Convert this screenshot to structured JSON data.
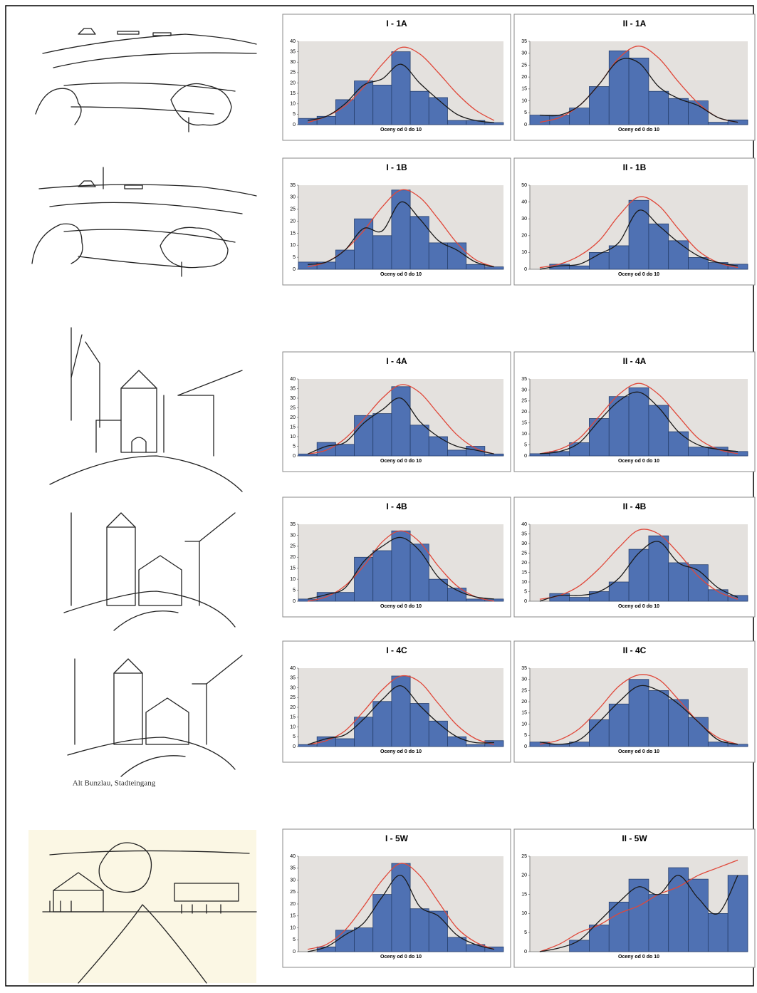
{
  "caption": "Alt Bunzlau, Stadteingang",
  "chart_data": [
    {
      "type": "bar",
      "title": "I - 1A",
      "xlabel": "Oceny od 0 do 10",
      "ylim": [
        0,
        40
      ],
      "yticks": [
        0,
        5,
        10,
        15,
        20,
        25,
        30,
        35,
        40
      ],
      "series": [
        {
          "type": "bar",
          "color": "#4f71b3",
          "values": [
            3,
            4,
            12,
            21,
            19,
            35,
            16,
            13,
            2,
            2,
            1
          ]
        },
        {
          "type": "line",
          "color": "#e0483a",
          "values": [
            1,
            4,
            9,
            18,
            29,
            37,
            34,
            25,
            15,
            7,
            2
          ]
        },
        {
          "type": "line",
          "color": "#1a1a1a",
          "values": [
            2,
            4,
            10,
            19,
            22,
            29,
            20,
            12,
            5,
            2,
            1
          ]
        }
      ]
    },
    {
      "type": "bar",
      "title": "II - 1A",
      "xlabel": "Oceny od 0 do 10",
      "ylim": [
        0,
        35
      ],
      "yticks": [
        0,
        5,
        10,
        15,
        20,
        25,
        30,
        35
      ],
      "series": [
        {
          "type": "bar",
          "color": "#4f71b3",
          "values": [
            4,
            4,
            7,
            16,
            31,
            28,
            14,
            11,
            10,
            1,
            2
          ]
        },
        {
          "type": "line",
          "color": "#e0483a",
          "values": [
            1,
            3,
            8,
            17,
            28,
            33,
            28,
            18,
            9,
            3,
            1
          ]
        },
        {
          "type": "line",
          "color": "#1a1a1a",
          "values": [
            4,
            4,
            8,
            17,
            27,
            26,
            16,
            11,
            8,
            3,
            1
          ]
        }
      ]
    },
    {
      "type": "bar",
      "title": "I - 1B",
      "xlabel": "Oceny od 0 do 10",
      "ylim": [
        0,
        35
      ],
      "yticks": [
        0,
        5,
        10,
        15,
        20,
        25,
        30,
        35
      ],
      "series": [
        {
          "type": "bar",
          "color": "#4f71b3",
          "values": [
            3,
            3,
            8,
            21,
            14,
            33,
            22,
            11,
            11,
            2,
            1
          ]
        },
        {
          "type": "line",
          "color": "#e0483a",
          "values": [
            1,
            3,
            8,
            16,
            26,
            33,
            30,
            21,
            11,
            4,
            1
          ]
        },
        {
          "type": "line",
          "color": "#1a1a1a",
          "values": [
            2,
            3,
            8,
            17,
            16,
            28,
            21,
            12,
            8,
            3,
            1
          ]
        }
      ]
    },
    {
      "type": "bar",
      "title": "II - 1B",
      "xlabel": "Oceny od 0 do 10",
      "ylim": [
        0,
        50
      ],
      "yticks": [
        0,
        10,
        20,
        30,
        40,
        50
      ],
      "series": [
        {
          "type": "bar",
          "color": "#4f71b3",
          "values": [
            0,
            3,
            2,
            10,
            14,
            41,
            27,
            17,
            7,
            4,
            3
          ]
        },
        {
          "type": "line",
          "color": "#e0483a",
          "values": [
            1,
            3,
            8,
            17,
            32,
            43,
            38,
            24,
            11,
            4,
            1
          ]
        },
        {
          "type": "line",
          "color": "#1a1a1a",
          "values": [
            0,
            2,
            3,
            9,
            16,
            35,
            26,
            16,
            8,
            4,
            2
          ]
        }
      ]
    },
    {
      "type": "bar",
      "title": "I - 4A",
      "xlabel": "Oceny od 0 do 10",
      "ylim": [
        0,
        40
      ],
      "yticks": [
        0,
        5,
        10,
        15,
        20,
        25,
        30,
        35,
        40
      ],
      "series": [
        {
          "type": "bar",
          "color": "#4f71b3",
          "values": [
            1,
            7,
            6,
            21,
            22,
            36,
            16,
            10,
            3,
            5,
            1
          ]
        },
        {
          "type": "line",
          "color": "#e0483a",
          "values": [
            1,
            3,
            9,
            19,
            30,
            37,
            33,
            22,
            11,
            4,
            1
          ]
        },
        {
          "type": "line",
          "color": "#1a1a1a",
          "values": [
            1,
            5,
            7,
            17,
            24,
            30,
            18,
            10,
            5,
            3,
            1
          ]
        }
      ]
    },
    {
      "type": "bar",
      "title": "II - 4A",
      "xlabel": "Oceny od 0 do 10",
      "ylim": [
        0,
        35
      ],
      "yticks": [
        0,
        5,
        10,
        15,
        20,
        25,
        30,
        35
      ],
      "series": [
        {
          "type": "bar",
          "color": "#4f71b3",
          "values": [
            1,
            2,
            6,
            17,
            27,
            31,
            23,
            11,
            4,
            4,
            2
          ]
        },
        {
          "type": "line",
          "color": "#e0483a",
          "values": [
            1,
            3,
            8,
            18,
            28,
            33,
            28,
            18,
            8,
            3,
            1
          ]
        },
        {
          "type": "line",
          "color": "#1a1a1a",
          "values": [
            1,
            2,
            6,
            16,
            25,
            29,
            22,
            11,
            5,
            3,
            2
          ]
        }
      ]
    },
    {
      "type": "bar",
      "title": "I - 4B",
      "xlabel": "Oceny od 0 do 10",
      "ylim": [
        0,
        35
      ],
      "yticks": [
        0,
        5,
        10,
        15,
        20,
        25,
        30,
        35
      ],
      "series": [
        {
          "type": "bar",
          "color": "#4f71b3",
          "values": [
            1,
            4,
            4,
            20,
            23,
            32,
            26,
            10,
            6,
            1,
            1
          ]
        },
        {
          "type": "line",
          "color": "#e0483a",
          "values": [
            0,
            2,
            7,
            16,
            27,
            32,
            27,
            16,
            7,
            2,
            0
          ]
        },
        {
          "type": "line",
          "color": "#1a1a1a",
          "values": [
            1,
            3,
            6,
            18,
            25,
            29,
            23,
            11,
            5,
            2,
            1
          ]
        }
      ]
    },
    {
      "type": "bar",
      "title": "II - 4B",
      "xlabel": "Oceny od 0 do 10",
      "ylim": [
        0,
        40
      ],
      "yticks": [
        0,
        5,
        10,
        15,
        20,
        25,
        30,
        35,
        40
      ],
      "series": [
        {
          "type": "bar",
          "color": "#4f71b3",
          "values": [
            0,
            4,
            2,
            5,
            10,
            27,
            34,
            20,
            19,
            6,
            3
          ]
        },
        {
          "type": "line",
          "color": "#e0483a",
          "values": [
            1,
            3,
            8,
            17,
            28,
            37,
            35,
            25,
            13,
            5,
            1
          ]
        },
        {
          "type": "line",
          "color": "#1a1a1a",
          "values": [
            0,
            3,
            3,
            5,
            12,
            25,
            31,
            20,
            16,
            7,
            2
          ]
        }
      ]
    },
    {
      "type": "bar",
      "title": "I - 4C",
      "xlabel": "Oceny od 0 do 10",
      "ylim": [
        0,
        40
      ],
      "yticks": [
        0,
        5,
        10,
        15,
        20,
        25,
        30,
        35,
        40
      ],
      "series": [
        {
          "type": "bar",
          "color": "#4f71b3",
          "values": [
            1,
            5,
            4,
            15,
            23,
            36,
            22,
            13,
            5,
            1,
            3
          ]
        },
        {
          "type": "line",
          "color": "#e0483a",
          "values": [
            1,
            3,
            8,
            18,
            29,
            36,
            33,
            22,
            11,
            4,
            1
          ]
        },
        {
          "type": "line",
          "color": "#1a1a1a",
          "values": [
            1,
            4,
            6,
            14,
            24,
            31,
            21,
            12,
            5,
            2,
            2
          ]
        }
      ]
    },
    {
      "type": "bar",
      "title": "II - 4C",
      "xlabel": "Oceny od 0 do 10",
      "ylim": [
        0,
        35
      ],
      "yticks": [
        0,
        5,
        10,
        15,
        20,
        25,
        30,
        35
      ],
      "series": [
        {
          "type": "bar",
          "color": "#4f71b3",
          "values": [
            2,
            1,
            2,
            12,
            19,
            30,
            25,
            21,
            13,
            2,
            1
          ]
        },
        {
          "type": "line",
          "color": "#e0483a",
          "values": [
            1,
            3,
            8,
            17,
            27,
            32,
            30,
            21,
            11,
            4,
            1
          ]
        },
        {
          "type": "line",
          "color": "#1a1a1a",
          "values": [
            2,
            1,
            3,
            11,
            20,
            27,
            25,
            19,
            11,
            3,
            1
          ]
        }
      ]
    },
    {
      "type": "bar",
      "title": "I - 5W",
      "xlabel": "Oceny od 0 do 10",
      "ylim": [
        0,
        40
      ],
      "yticks": [
        0,
        5,
        10,
        15,
        20,
        25,
        30,
        35,
        40
      ],
      "series": [
        {
          "type": "bar",
          "color": "#4f71b3",
          "values": [
            0,
            2,
            9,
            10,
            24,
            37,
            18,
            17,
            6,
            3,
            2
          ]
        },
        {
          "type": "line",
          "color": "#e0483a",
          "values": [
            1,
            3,
            9,
            19,
            30,
            37,
            32,
            21,
            10,
            4,
            1
          ]
        },
        {
          "type": "line",
          "color": "#1a1a1a",
          "values": [
            0,
            2,
            7,
            12,
            23,
            32,
            19,
            15,
            7,
            3,
            1
          ]
        }
      ]
    },
    {
      "type": "bar",
      "title": "II - 5W",
      "xlabel": "Oceny od 0 do 10",
      "ylim": [
        0,
        25
      ],
      "yticks": [
        0,
        5,
        10,
        15,
        20,
        25
      ],
      "series": [
        {
          "type": "bar",
          "color": "#4f71b3",
          "values": [
            0,
            0,
            3,
            7,
            13,
            19,
            15,
            22,
            19,
            10,
            20
          ]
        },
        {
          "type": "line",
          "color": "#e0483a",
          "values": [
            0,
            2,
            5,
            7,
            10,
            12,
            15,
            17,
            20,
            22,
            24
          ]
        },
        {
          "type": "line",
          "color": "#1a1a1a",
          "values": [
            0,
            1,
            3,
            8,
            13,
            17,
            15,
            20,
            14,
            10,
            20
          ]
        }
      ]
    }
  ]
}
